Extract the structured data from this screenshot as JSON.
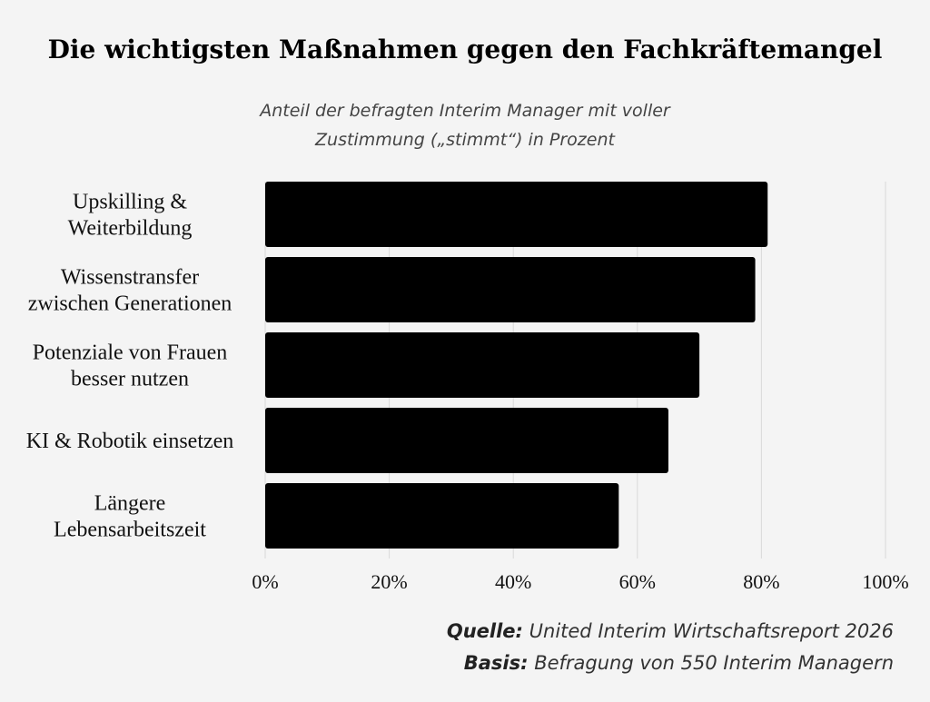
{
  "title": "Die wichtigsten Maßnahmen gegen den Fachkräftemangel",
  "subtitle_line1": "Anteil der befragten Interim Manager mit voller",
  "subtitle_line2": "Zustimmung („stimmt“) in Prozent",
  "footer": {
    "source_label": "Quelle:",
    "source_text": "United Interim Wirtschaftsreport 2026",
    "basis_label": "Basis:",
    "basis_text": "Befragung von 550 Interim Managern"
  },
  "colors": {
    "bar": "#000000",
    "background": "#f4f4f4",
    "grid": "#d9d9d9"
  },
  "chart_data": {
    "type": "bar",
    "orientation": "horizontal",
    "title": "Die wichtigsten Maßnahmen gegen den Fachkräftemangel",
    "categories": [
      [
        "Upskilling &",
        "Weiterbildung"
      ],
      [
        "Wissenstransfer",
        "zwischen Generationen"
      ],
      [
        "Potenziale von Frauen",
        "besser nutzen"
      ],
      [
        "KI & Robotik einsetzen"
      ],
      [
        "Längere",
        "Lebensarbeitszeit"
      ]
    ],
    "values": [
      81,
      79,
      70,
      65,
      57
    ],
    "xlim": [
      0,
      100
    ],
    "xticks": [
      "0%",
      "20%",
      "40%",
      "60%",
      "80%",
      "100%"
    ],
    "grid": true
  }
}
